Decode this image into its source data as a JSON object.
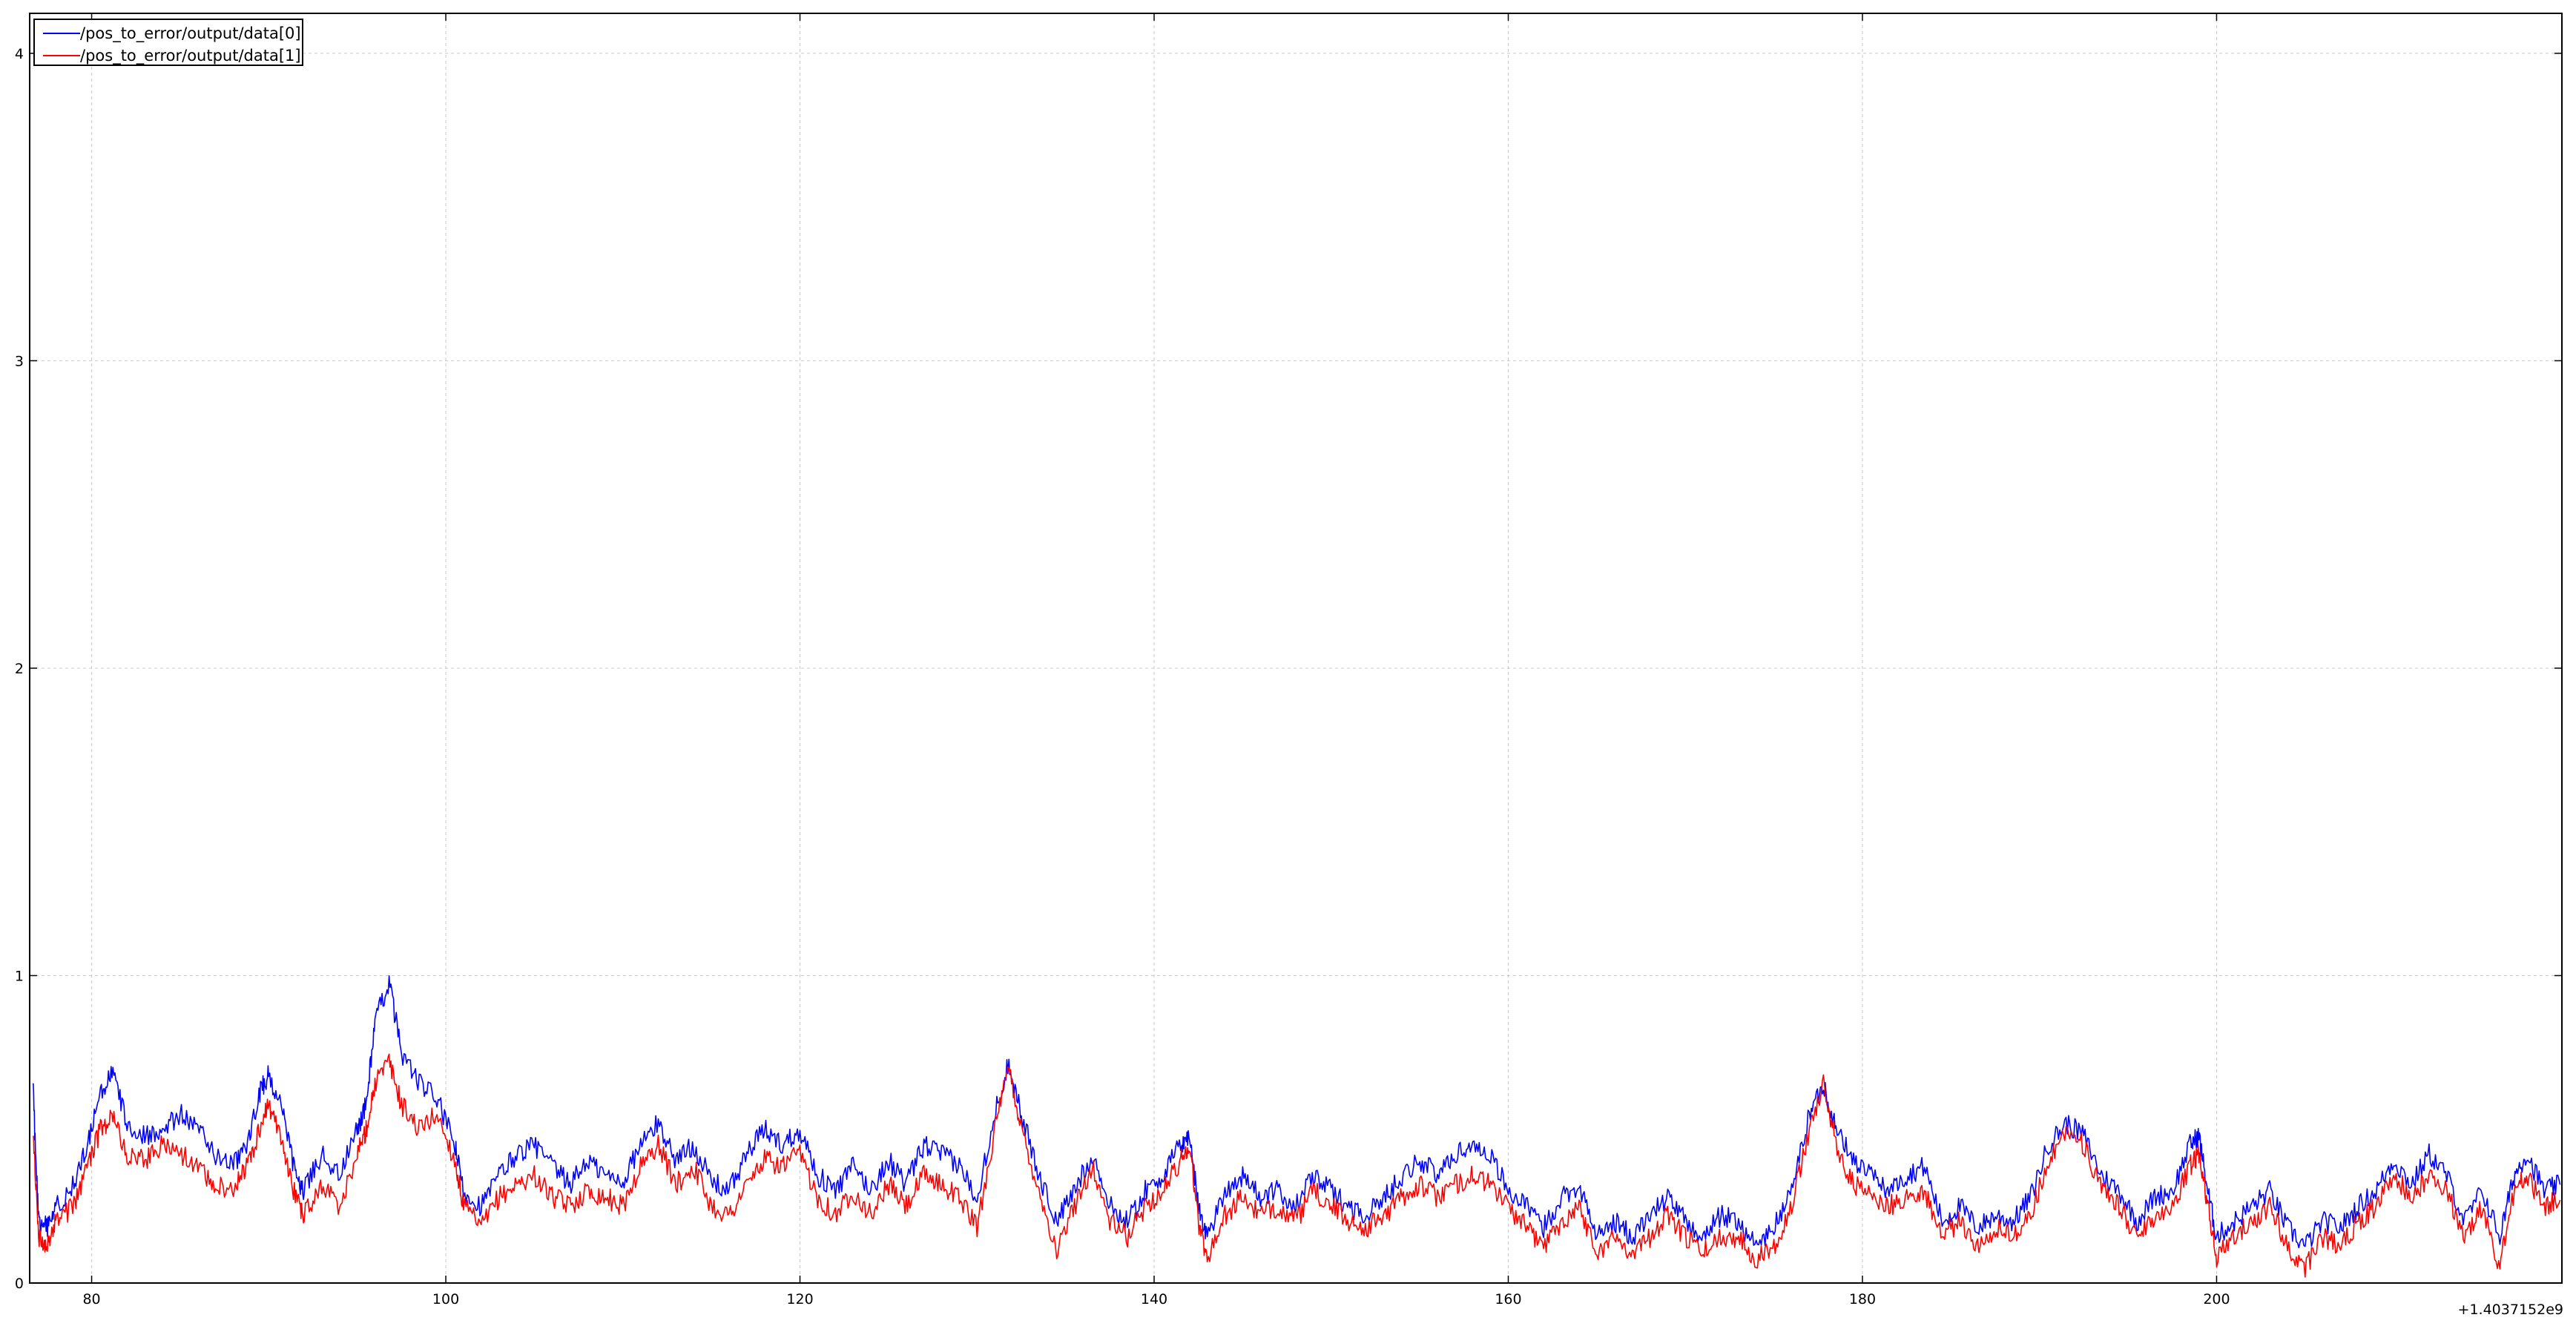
{
  "chart_data": {
    "type": "line",
    "title": "",
    "xlabel": "",
    "ylabel": "",
    "x_offset_label": "+1.4037152e9",
    "xlim": [
      76.5,
      219.5
    ],
    "ylim": [
      0,
      4.13
    ],
    "xticks": [
      80,
      100,
      120,
      140,
      160,
      180,
      200
    ],
    "yticks": [
      0,
      1,
      2,
      3,
      4
    ],
    "grid": true,
    "legend_position": "top-left",
    "series": [
      {
        "name": "/pos_to_error/output/data[0]",
        "color": "#0000ff",
        "points": [
          [
            76.7,
            0.62
          ],
          [
            77.0,
            0.2
          ],
          [
            77.5,
            0.18
          ],
          [
            78.0,
            0.25
          ],
          [
            79.0,
            0.32
          ],
          [
            79.8,
            0.45
          ],
          [
            80.5,
            0.62
          ],
          [
            81.2,
            0.68
          ],
          [
            82.0,
            0.52
          ],
          [
            83.0,
            0.48
          ],
          [
            84.0,
            0.5
          ],
          [
            85.0,
            0.55
          ],
          [
            86.0,
            0.5
          ],
          [
            87.0,
            0.42
          ],
          [
            88.0,
            0.38
          ],
          [
            88.8,
            0.45
          ],
          [
            89.5,
            0.62
          ],
          [
            90.0,
            0.68
          ],
          [
            90.8,
            0.55
          ],
          [
            91.5,
            0.35
          ],
          [
            92.0,
            0.3
          ],
          [
            93.0,
            0.42
          ],
          [
            94.0,
            0.35
          ],
          [
            95.0,
            0.5
          ],
          [
            95.5,
            0.58
          ],
          [
            96.0,
            0.85
          ],
          [
            96.8,
            0.98
          ],
          [
            97.5,
            0.75
          ],
          [
            98.5,
            0.65
          ],
          [
            99.5,
            0.6
          ],
          [
            100.5,
            0.45
          ],
          [
            101.0,
            0.3
          ],
          [
            102.0,
            0.25
          ],
          [
            103.0,
            0.35
          ],
          [
            104.0,
            0.42
          ],
          [
            105.0,
            0.45
          ],
          [
            106.0,
            0.38
          ],
          [
            107.0,
            0.32
          ],
          [
            108.0,
            0.4
          ],
          [
            109.0,
            0.35
          ],
          [
            110.0,
            0.33
          ],
          [
            111.0,
            0.45
          ],
          [
            112.0,
            0.52
          ],
          [
            113.0,
            0.4
          ],
          [
            114.0,
            0.45
          ],
          [
            115.0,
            0.33
          ],
          [
            116.0,
            0.3
          ],
          [
            117.0,
            0.42
          ],
          [
            118.0,
            0.5
          ],
          [
            119.0,
            0.45
          ],
          [
            120.0,
            0.5
          ],
          [
            121.0,
            0.35
          ],
          [
            122.0,
            0.3
          ],
          [
            123.0,
            0.38
          ],
          [
            124.0,
            0.3
          ],
          [
            125.0,
            0.4
          ],
          [
            126.0,
            0.32
          ],
          [
            127.0,
            0.45
          ],
          [
            128.0,
            0.42
          ],
          [
            129.0,
            0.38
          ],
          [
            130.0,
            0.28
          ],
          [
            131.0,
            0.55
          ],
          [
            131.8,
            0.72
          ],
          [
            132.5,
            0.55
          ],
          [
            133.5,
            0.35
          ],
          [
            134.5,
            0.2
          ],
          [
            135.5,
            0.3
          ],
          [
            136.5,
            0.42
          ],
          [
            137.5,
            0.25
          ],
          [
            138.5,
            0.2
          ],
          [
            139.5,
            0.3
          ],
          [
            140.5,
            0.35
          ],
          [
            141.5,
            0.45
          ],
          [
            142.0,
            0.48
          ],
          [
            142.5,
            0.25
          ],
          [
            143.0,
            0.15
          ],
          [
            144.0,
            0.3
          ],
          [
            145.0,
            0.35
          ],
          [
            146.0,
            0.28
          ],
          [
            147.0,
            0.3
          ],
          [
            148.0,
            0.25
          ],
          [
            149.0,
            0.35
          ],
          [
            150.0,
            0.3
          ],
          [
            151.0,
            0.25
          ],
          [
            152.0,
            0.22
          ],
          [
            153.0,
            0.28
          ],
          [
            154.0,
            0.35
          ],
          [
            155.0,
            0.4
          ],
          [
            156.0,
            0.35
          ],
          [
            157.0,
            0.42
          ],
          [
            158.0,
            0.45
          ],
          [
            159.0,
            0.42
          ],
          [
            160.0,
            0.3
          ],
          [
            161.0,
            0.25
          ],
          [
            162.0,
            0.18
          ],
          [
            163.0,
            0.28
          ],
          [
            164.0,
            0.32
          ],
          [
            165.0,
            0.15
          ],
          [
            166.0,
            0.2
          ],
          [
            167.0,
            0.15
          ],
          [
            168.0,
            0.22
          ],
          [
            169.0,
            0.28
          ],
          [
            170.0,
            0.2
          ],
          [
            171.0,
            0.15
          ],
          [
            172.0,
            0.22
          ],
          [
            173.0,
            0.2
          ],
          [
            174.0,
            0.12
          ],
          [
            175.0,
            0.18
          ],
          [
            176.0,
            0.3
          ],
          [
            177.0,
            0.55
          ],
          [
            177.8,
            0.65
          ],
          [
            178.5,
            0.5
          ],
          [
            179.5,
            0.4
          ],
          [
            180.5,
            0.35
          ],
          [
            181.5,
            0.3
          ],
          [
            182.5,
            0.35
          ],
          [
            183.5,
            0.38
          ],
          [
            184.5,
            0.2
          ],
          [
            185.5,
            0.25
          ],
          [
            186.5,
            0.18
          ],
          [
            187.5,
            0.22
          ],
          [
            188.5,
            0.2
          ],
          [
            189.5,
            0.28
          ],
          [
            190.5,
            0.45
          ],
          [
            191.5,
            0.52
          ],
          [
            192.5,
            0.48
          ],
          [
            193.5,
            0.35
          ],
          [
            194.5,
            0.3
          ],
          [
            195.5,
            0.2
          ],
          [
            196.5,
            0.28
          ],
          [
            197.5,
            0.3
          ],
          [
            198.5,
            0.45
          ],
          [
            199.0,
            0.48
          ],
          [
            199.5,
            0.3
          ],
          [
            200.0,
            0.15
          ],
          [
            201.0,
            0.2
          ],
          [
            202.0,
            0.25
          ],
          [
            203.0,
            0.3
          ],
          [
            204.0,
            0.18
          ],
          [
            205.0,
            0.12
          ],
          [
            206.0,
            0.2
          ],
          [
            207.0,
            0.18
          ],
          [
            208.0,
            0.25
          ],
          [
            209.0,
            0.3
          ],
          [
            210.0,
            0.4
          ],
          [
            211.0,
            0.32
          ],
          [
            212.0,
            0.42
          ],
          [
            213.0,
            0.35
          ],
          [
            214.0,
            0.2
          ],
          [
            215.0,
            0.3
          ],
          [
            216.0,
            0.15
          ],
          [
            216.8,
            0.35
          ],
          [
            217.5,
            0.42
          ],
          [
            218.5,
            0.3
          ],
          [
            219.4,
            0.32
          ]
        ]
      },
      {
        "name": "/pos_to_error/output/data[1]",
        "color": "#ff0000",
        "points": [
          [
            76.7,
            0.5
          ],
          [
            77.0,
            0.15
          ],
          [
            77.5,
            0.13
          ],
          [
            78.0,
            0.2
          ],
          [
            79.0,
            0.25
          ],
          [
            79.8,
            0.38
          ],
          [
            80.5,
            0.5
          ],
          [
            81.2,
            0.55
          ],
          [
            82.0,
            0.42
          ],
          [
            83.0,
            0.4
          ],
          [
            84.0,
            0.45
          ],
          [
            85.0,
            0.42
          ],
          [
            86.0,
            0.38
          ],
          [
            87.0,
            0.32
          ],
          [
            88.0,
            0.3
          ],
          [
            88.8,
            0.38
          ],
          [
            89.5,
            0.5
          ],
          [
            90.0,
            0.58
          ],
          [
            90.8,
            0.45
          ],
          [
            91.5,
            0.28
          ],
          [
            92.0,
            0.22
          ],
          [
            93.0,
            0.32
          ],
          [
            94.0,
            0.25
          ],
          [
            95.0,
            0.42
          ],
          [
            95.5,
            0.5
          ],
          [
            96.0,
            0.65
          ],
          [
            96.8,
            0.72
          ],
          [
            97.5,
            0.58
          ],
          [
            98.5,
            0.5
          ],
          [
            99.5,
            0.55
          ],
          [
            100.5,
            0.4
          ],
          [
            101.0,
            0.25
          ],
          [
            102.0,
            0.18
          ],
          [
            103.0,
            0.28
          ],
          [
            104.0,
            0.32
          ],
          [
            105.0,
            0.35
          ],
          [
            106.0,
            0.28
          ],
          [
            107.0,
            0.25
          ],
          [
            108.0,
            0.3
          ],
          [
            109.0,
            0.28
          ],
          [
            110.0,
            0.25
          ],
          [
            111.0,
            0.38
          ],
          [
            112.0,
            0.45
          ],
          [
            113.0,
            0.32
          ],
          [
            114.0,
            0.38
          ],
          [
            115.0,
            0.25
          ],
          [
            116.0,
            0.22
          ],
          [
            117.0,
            0.32
          ],
          [
            118.0,
            0.4
          ],
          [
            119.0,
            0.38
          ],
          [
            120.0,
            0.42
          ],
          [
            121.0,
            0.28
          ],
          [
            122.0,
            0.22
          ],
          [
            123.0,
            0.3
          ],
          [
            124.0,
            0.22
          ],
          [
            125.0,
            0.32
          ],
          [
            126.0,
            0.25
          ],
          [
            127.0,
            0.35
          ],
          [
            128.0,
            0.32
          ],
          [
            129.0,
            0.28
          ],
          [
            130.0,
            0.18
          ],
          [
            131.0,
            0.5
          ],
          [
            131.8,
            0.7
          ],
          [
            132.5,
            0.5
          ],
          [
            133.5,
            0.3
          ],
          [
            134.5,
            0.1
          ],
          [
            135.5,
            0.25
          ],
          [
            136.5,
            0.38
          ],
          [
            137.5,
            0.2
          ],
          [
            138.5,
            0.15
          ],
          [
            139.5,
            0.25
          ],
          [
            140.5,
            0.3
          ],
          [
            141.5,
            0.4
          ],
          [
            142.0,
            0.45
          ],
          [
            142.5,
            0.2
          ],
          [
            143.0,
            0.08
          ],
          [
            144.0,
            0.22
          ],
          [
            145.0,
            0.28
          ],
          [
            146.0,
            0.22
          ],
          [
            147.0,
            0.25
          ],
          [
            148.0,
            0.2
          ],
          [
            149.0,
            0.3
          ],
          [
            150.0,
            0.25
          ],
          [
            151.0,
            0.2
          ],
          [
            152.0,
            0.18
          ],
          [
            153.0,
            0.22
          ],
          [
            154.0,
            0.28
          ],
          [
            155.0,
            0.32
          ],
          [
            156.0,
            0.28
          ],
          [
            157.0,
            0.32
          ],
          [
            158.0,
            0.35
          ],
          [
            159.0,
            0.32
          ],
          [
            160.0,
            0.25
          ],
          [
            161.0,
            0.18
          ],
          [
            162.0,
            0.12
          ],
          [
            163.0,
            0.2
          ],
          [
            164.0,
            0.25
          ],
          [
            165.0,
            0.1
          ],
          [
            166.0,
            0.15
          ],
          [
            167.0,
            0.1
          ],
          [
            168.0,
            0.15
          ],
          [
            169.0,
            0.22
          ],
          [
            170.0,
            0.15
          ],
          [
            171.0,
            0.1
          ],
          [
            172.0,
            0.15
          ],
          [
            173.0,
            0.15
          ],
          [
            174.0,
            0.08
          ],
          [
            175.0,
            0.12
          ],
          [
            176.0,
            0.25
          ],
          [
            177.0,
            0.5
          ],
          [
            177.8,
            0.65
          ],
          [
            178.5,
            0.45
          ],
          [
            179.5,
            0.32
          ],
          [
            180.5,
            0.28
          ],
          [
            181.5,
            0.25
          ],
          [
            182.5,
            0.28
          ],
          [
            183.5,
            0.3
          ],
          [
            184.5,
            0.15
          ],
          [
            185.5,
            0.2
          ],
          [
            186.5,
            0.12
          ],
          [
            187.5,
            0.18
          ],
          [
            188.5,
            0.15
          ],
          [
            189.5,
            0.22
          ],
          [
            190.5,
            0.4
          ],
          [
            191.5,
            0.5
          ],
          [
            192.5,
            0.45
          ],
          [
            193.5,
            0.3
          ],
          [
            194.5,
            0.25
          ],
          [
            195.5,
            0.15
          ],
          [
            196.5,
            0.22
          ],
          [
            197.5,
            0.25
          ],
          [
            198.5,
            0.38
          ],
          [
            199.0,
            0.42
          ],
          [
            199.5,
            0.25
          ],
          [
            200.0,
            0.08
          ],
          [
            201.0,
            0.15
          ],
          [
            202.0,
            0.2
          ],
          [
            203.0,
            0.25
          ],
          [
            204.0,
            0.12
          ],
          [
            205.0,
            0.05
          ],
          [
            206.0,
            0.15
          ],
          [
            207.0,
            0.12
          ],
          [
            208.0,
            0.2
          ],
          [
            209.0,
            0.25
          ],
          [
            210.0,
            0.35
          ],
          [
            211.0,
            0.28
          ],
          [
            212.0,
            0.35
          ],
          [
            213.0,
            0.3
          ],
          [
            214.0,
            0.15
          ],
          [
            215.0,
            0.25
          ],
          [
            216.0,
            0.05
          ],
          [
            216.8,
            0.3
          ],
          [
            217.5,
            0.35
          ],
          [
            218.5,
            0.25
          ],
          [
            219.4,
            0.27
          ]
        ]
      }
    ]
  }
}
